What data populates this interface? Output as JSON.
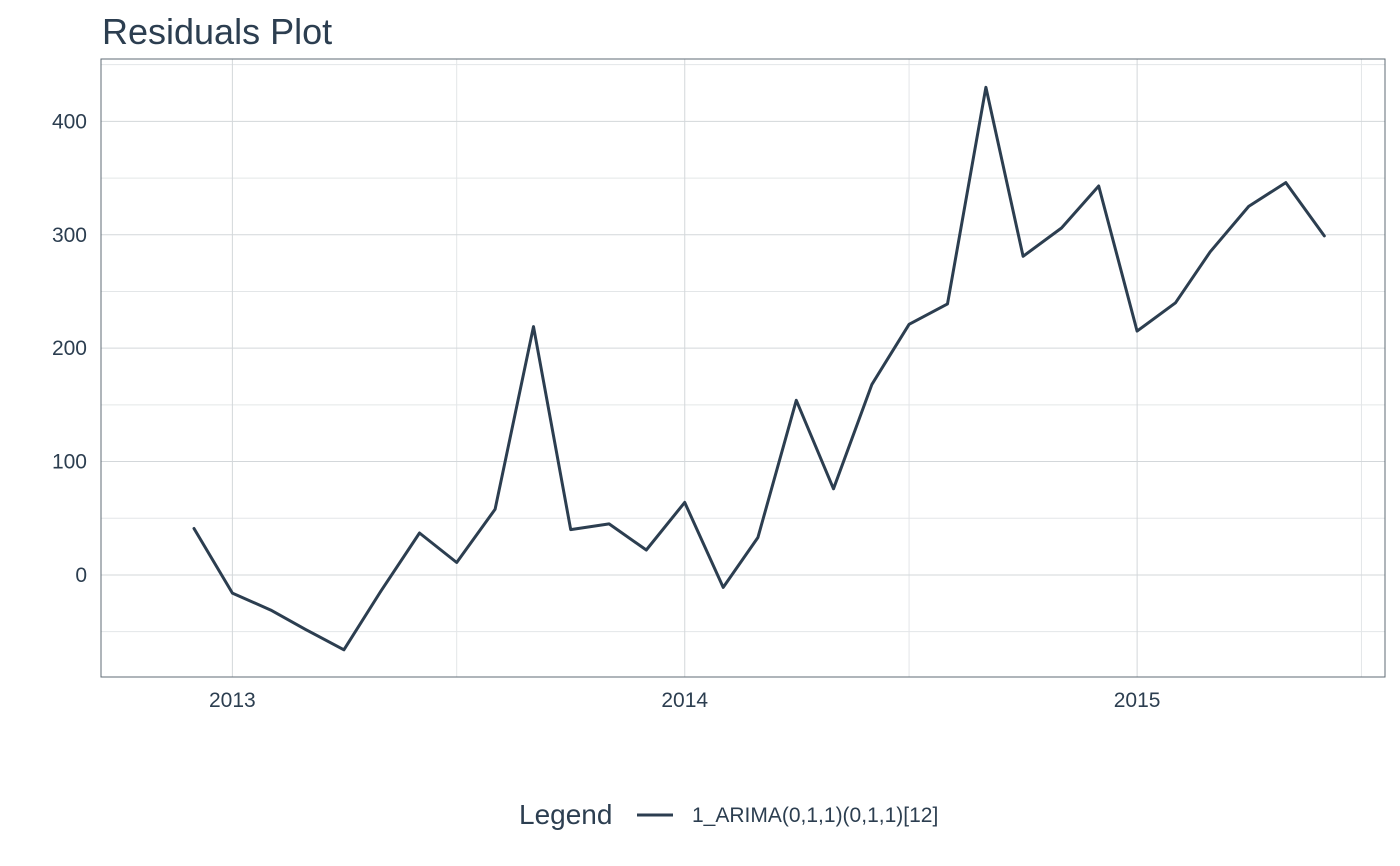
{
  "chart_data": {
    "type": "line",
    "title": "Residuals Plot",
    "xlabel": "",
    "ylabel": "",
    "x_tick_labels": [
      "2013",
      "2014",
      "2015"
    ],
    "y_tick_labels": [
      "0",
      "100",
      "200",
      "300",
      "400"
    ],
    "ylim": [
      -90,
      455
    ],
    "xlim": [
      "2012-09-17",
      "2015-07-20"
    ],
    "grid": true,
    "legend_position": "bottom",
    "legend_title": "Legend",
    "series": [
      {
        "name": "1_ARIMA(0,1,1)(0,1,1)[12]",
        "color": "#2c3e50",
        "x": [
          "2012-12-01",
          "2013-01-01",
          "2013-02-01",
          "2013-03-01",
          "2013-04-01",
          "2013-05-01",
          "2013-06-01",
          "2013-07-01",
          "2013-08-01",
          "2013-09-01",
          "2013-10-01",
          "2013-11-01",
          "2013-12-01",
          "2014-01-01",
          "2014-02-01",
          "2014-03-01",
          "2014-04-01",
          "2014-05-01",
          "2014-06-01",
          "2014-07-01",
          "2014-08-01",
          "2014-09-01",
          "2014-10-01",
          "2014-11-01",
          "2014-12-01",
          "2015-01-01",
          "2015-02-01",
          "2015-03-01",
          "2015-04-01",
          "2015-05-01",
          "2015-06-01"
        ],
        "values": [
          41,
          -16,
          -31,
          -48,
          -66,
          -14,
          37,
          11,
          58,
          219,
          40,
          45,
          22,
          64,
          -11,
          33,
          154,
          76,
          168,
          221,
          239,
          430,
          281,
          306,
          343,
          215,
          240,
          285,
          325,
          346,
          299
        ]
      }
    ]
  }
}
